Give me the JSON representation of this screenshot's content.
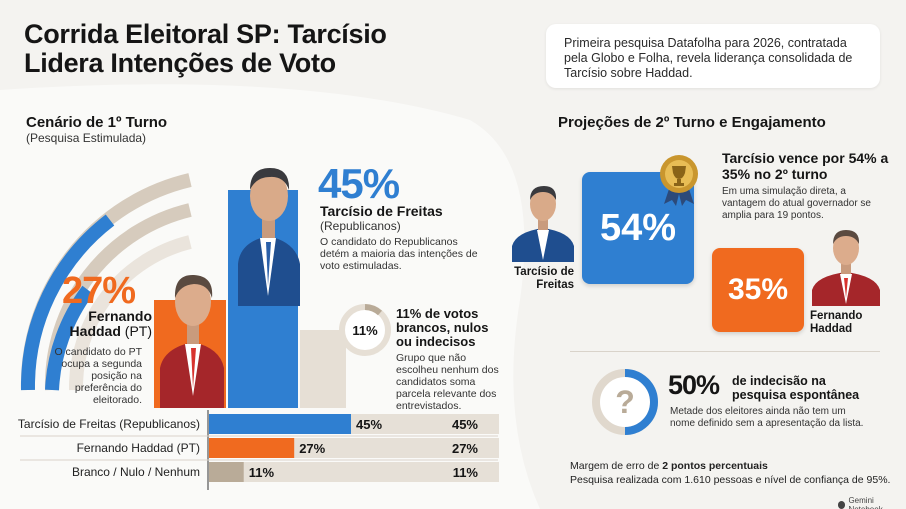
{
  "header": {
    "title_line1": "Corrida Eleitoral SP: Tarcísio",
    "title_line2": "Lidera Intenções de Voto",
    "intro": "Primeira pesquisa Datafolha para 2026, contratada pela Globo e Folha, revela liderança consolidada de Tarcísio sobre Haddad."
  },
  "colors": {
    "blue": "#2f7fd1",
    "orange": "#f06a1f",
    "beige": "#d6cbbd",
    "dark": "#151515"
  },
  "first_round": {
    "title": "Cenário de 1º Turno",
    "subtitle": "(Pesquisa Estimulada)",
    "tarcisio": {
      "pct": "45%",
      "name": "Tarcísio de Freitas",
      "party": "(Republicanos)",
      "desc": "O candidato do Republicanos detém a maioria das intenções de voto estimuladas."
    },
    "haddad": {
      "pct": "27%",
      "name_line1": "Fernando",
      "name_line2": "Haddad",
      "party": "(PT)",
      "desc": "O candidato do PT ocupa a segunda posição na preferência do eleitorado."
    },
    "blank": {
      "pct": "11%",
      "title": "11% de votos brancos, nulos ou indecisos",
      "desc": "Grupo que não escolheu nenhum dos candidatos soma parcela relevante dos entrevistados."
    }
  },
  "second_round": {
    "title": "Projeções de 2º Turno e Engajamento",
    "headline": "Tarcísio vence por 54% a 35% no 2º turno",
    "desc": "Em uma simulação direta, a vantagem do atual governador se amplia para 19 pontos.",
    "tarcisio_label": "Tarcísio de Freitas",
    "haddad_label": "Fernando Haddad",
    "tarcisio_pct": "54%",
    "haddad_pct": "35%"
  },
  "spontaneous": {
    "pct": "50%",
    "title": "de indecisão na pesquisa espontânea",
    "desc": "Metade dos eleitores ainda não tem um nome definido sem a apresentação da lista.",
    "icon": "question-mark-icon"
  },
  "footer": {
    "margin_prefix": "Margem de erro de ",
    "margin_bold": "2 pontos percentuais",
    "sample": "Pesquisa realizada com 1.610 pessoas e nível de confiança de 95%.",
    "brand": "Gemini Notebook"
  },
  "chart_data": {
    "type": "bar",
    "orientation": "horizontal",
    "categories": [
      "Tarcísio de Freitas (Republicanos)",
      "Fernando Haddad (PT)",
      "Branco / Nulo / Nenhum"
    ],
    "values": [
      45,
      27,
      11
    ],
    "value_labels": [
      "45%",
      "27%",
      "11%"
    ],
    "colors": [
      "#2f7fd1",
      "#f06a1f",
      "#b9ab98"
    ],
    "xlim": [
      0,
      100
    ]
  }
}
